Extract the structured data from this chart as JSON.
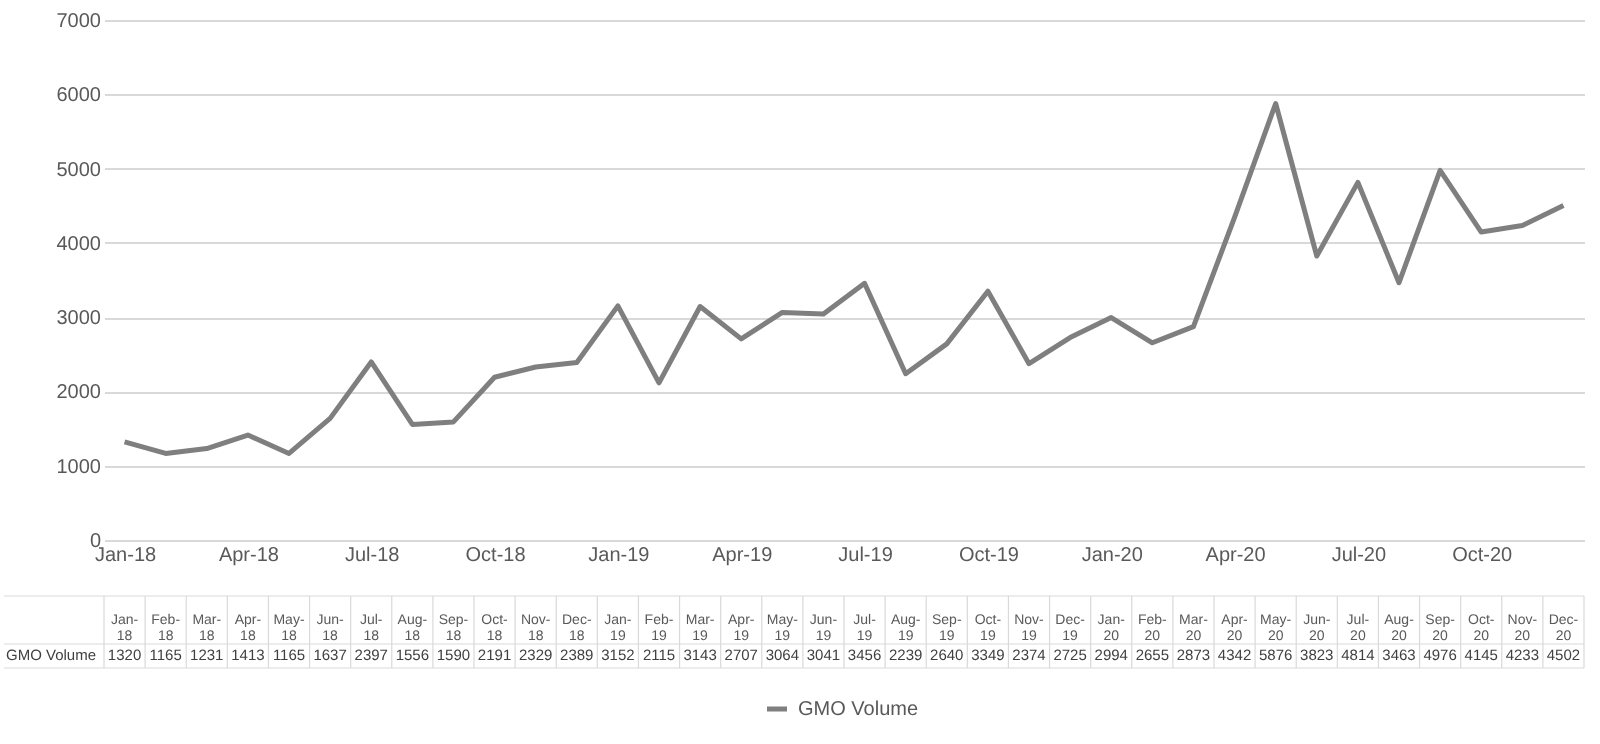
{
  "chart_data": {
    "type": "line",
    "categories": [
      "Jan-18",
      "Feb-18",
      "Mar-18",
      "Apr-18",
      "May-18",
      "Jun-18",
      "Jul-18",
      "Aug-18",
      "Sep-18",
      "Oct-18",
      "Nov-18",
      "Dec-18",
      "Jan-19",
      "Feb-19",
      "Mar-19",
      "Apr-19",
      "May-19",
      "Jun-19",
      "Jul-19",
      "Aug-19",
      "Sep-19",
      "Oct-19",
      "Nov-19",
      "Dec-19",
      "Jan-20",
      "Feb-20",
      "Mar-20",
      "Apr-20",
      "May-20",
      "Jun-20",
      "Jul-20",
      "Aug-20",
      "Sep-20",
      "Oct-20",
      "Nov-20",
      "Dec-20"
    ],
    "series": [
      {
        "name": "GMO Volume",
        "color": "#7f7f7f",
        "values": [
          1320,
          1165,
          1231,
          1413,
          1165,
          1637,
          2397,
          1556,
          1590,
          2191,
          2329,
          2389,
          3152,
          2115,
          3143,
          2707,
          3064,
          3041,
          3456,
          2239,
          2640,
          3349,
          2374,
          2725,
          2994,
          2655,
          2873,
          4342,
          5876,
          3823,
          4814,
          3463,
          4976,
          4145,
          4233,
          4502
        ]
      }
    ],
    "ylim": [
      0,
      7000
    ],
    "yticks": [
      0,
      1000,
      2000,
      3000,
      4000,
      5000,
      6000,
      7000
    ],
    "grid": "y",
    "legend": "bottom",
    "marker": "none",
    "line_style": "solid",
    "data_labels": true
  }
}
